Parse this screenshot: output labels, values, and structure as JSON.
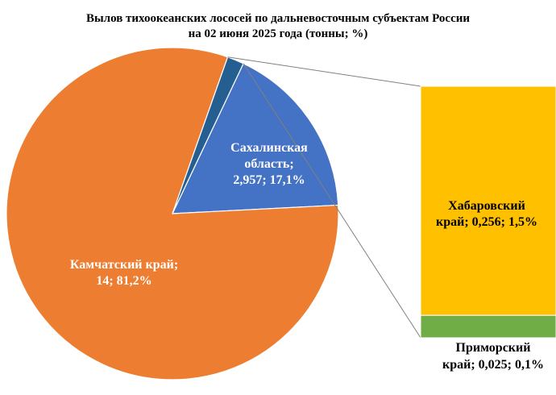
{
  "chart_data": {
    "type": "pie",
    "title_line1": "Вылов тихоокеанских лососей по дальневосточным субъектам России",
    "title_line2": "на 02 июня 2025 года (тонны; %)",
    "slices": [
      {
        "label_lines": [
          "Сахалинская",
          "область;",
          "2,957; 17,1%"
        ],
        "value": 2.957,
        "percent": 17.1,
        "color": "#4472C4",
        "text_color": "#ffffff"
      },
      {
        "label_lines": [
          "Камчатский край;",
          "14; 81,2%"
        ],
        "value": 14,
        "percent": 81.2,
        "color": "#ED7D31",
        "text_color": "#ffffff"
      },
      {
        "label_lines": [],
        "value": 0.281,
        "percent": 1.6,
        "color": "#255E91",
        "text_color": "#ffffff"
      }
    ],
    "breakout": [
      {
        "label_lines": [
          "Хабаровский",
          "край; 0,256; 1,5%"
        ],
        "value": 0.256,
        "percent": 1.5,
        "color": "#FFC000",
        "text_color": "#000000"
      },
      {
        "label_lines": [
          "Приморский",
          "край; 0,025; 0,1%"
        ],
        "value": 0.025,
        "percent": 0.1,
        "color": "#70AD47",
        "text_color": "#000000"
      }
    ],
    "connector_color": "#808080"
  }
}
